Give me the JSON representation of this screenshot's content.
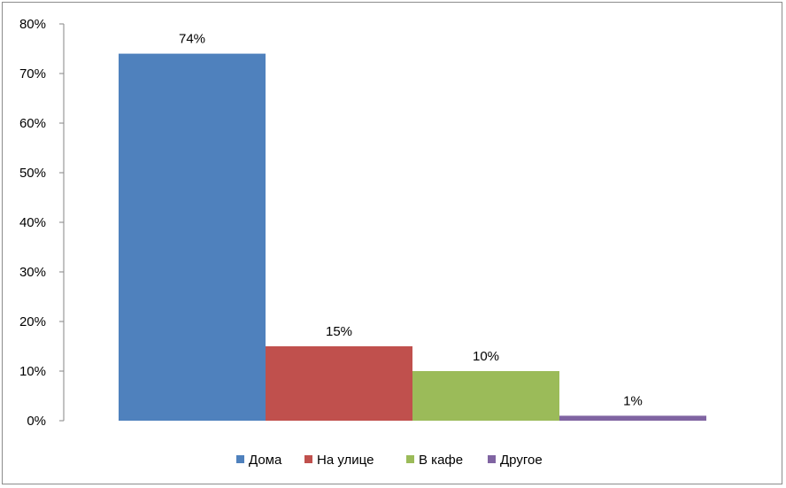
{
  "chart_data": {
    "type": "bar",
    "title": "",
    "xlabel": "",
    "ylabel": "",
    "ylim": [
      0,
      80
    ],
    "yticks": [
      "0%",
      "10%",
      "20%",
      "30%",
      "40%",
      "50%",
      "60%",
      "70%",
      "80%"
    ],
    "grid": false,
    "legend_position": "bottom",
    "series": [
      {
        "name": "Дома",
        "value": 74,
        "label": "74%",
        "color": "#4F81BD"
      },
      {
        "name": "На улице",
        "value": 15,
        "label": "15%",
        "color": "#C0504D"
      },
      {
        "name": "В кафе",
        "value": 10,
        "label": "10%",
        "color": "#9BBB59"
      },
      {
        "name": "Другое",
        "value": 1,
        "label": "1%",
        "color": "#8064A2"
      }
    ]
  }
}
